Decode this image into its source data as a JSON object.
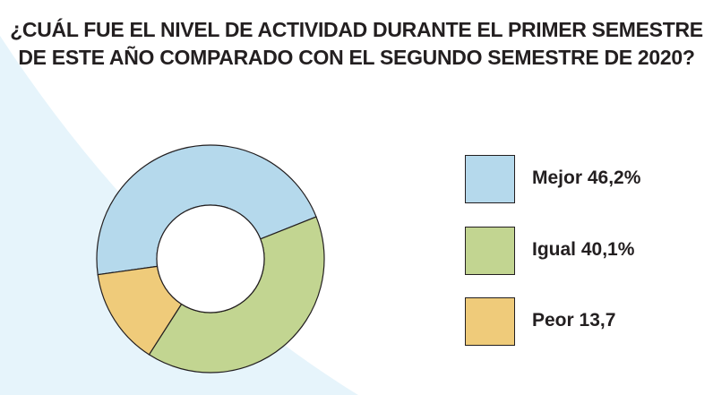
{
  "title": {
    "line1": "¿CUÁL FUE EL NIVEL DE ACTIVIDAD DURANTE EL PRIMER SEMESTRE",
    "line2": "DE ESTE AÑO COMPARADO CON EL SEGUNDO SEMESTRE DE 2020?"
  },
  "colors": {
    "background_accent": "#e6f4fb",
    "outline": "#231f20"
  },
  "chart_data": {
    "type": "pie",
    "variant": "donut",
    "title": "¿CUÁL FUE EL NIVEL DE ACTIVIDAD DURANTE EL PRIMER SEMESTRE DE ESTE AÑO COMPARADO CON EL SEGUNDO SEMESTRE DE 2020?",
    "legend_position": "right",
    "slices": [
      {
        "name": "Mejor",
        "value": 46.2,
        "label": "Mejor 46,2%",
        "color": "#b5d9ec"
      },
      {
        "name": "Igual",
        "value": 40.1,
        "label": "Igual 40,1%",
        "color": "#c2d591"
      },
      {
        "name": "Peor",
        "value": 13.7,
        "label": "Peor 13,7",
        "color": "#efcb7a"
      }
    ]
  }
}
